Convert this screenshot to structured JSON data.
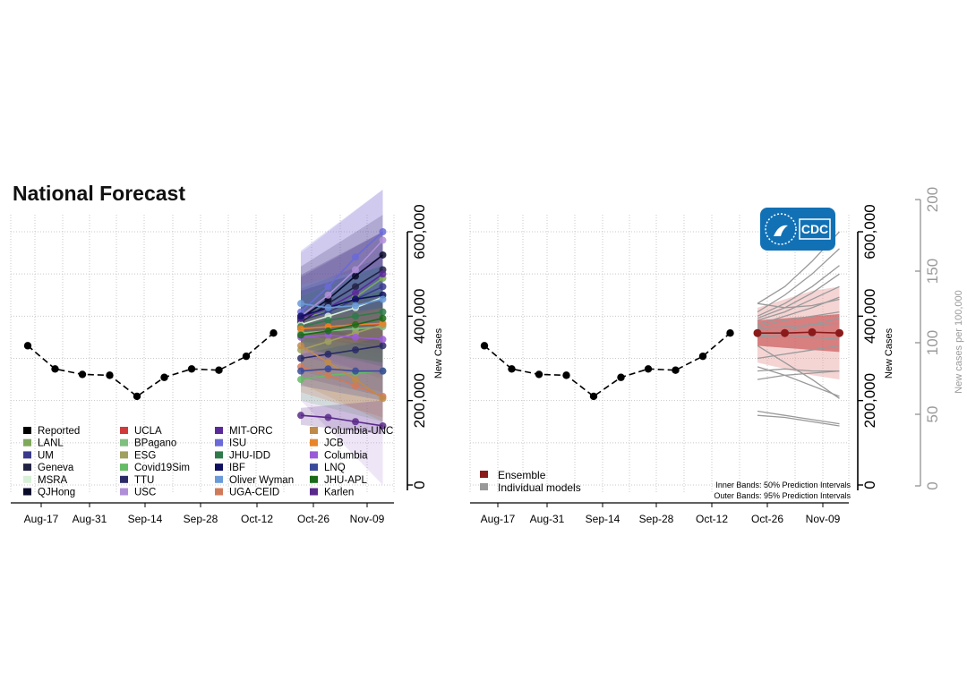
{
  "page_title": "National Forecast",
  "cdc_logo_text": "CDC",
  "colors": {
    "reported": "#000000",
    "ensemble": "#8b1a1a",
    "individual": "#999999",
    "ensemble_band_inner": "#c0393b",
    "ensemble_band_outer": "#e8a0a0"
  },
  "chart_data": [
    {
      "type": "line",
      "panel": "all-models",
      "x_ticks": [
        "Aug-17",
        "Aug-31",
        "Sep-14",
        "Sep-28",
        "Oct-12",
        "Oct-26",
        "Nov-09"
      ],
      "ylabel": "New Cases",
      "ylim": [
        0,
        600000
      ],
      "y_ticks": [
        "0",
        "200,000",
        "400,000",
        "600,000"
      ],
      "grid": true,
      "legend_placement": "bottom-left",
      "reported": {
        "name": "Reported",
        "x": [
          "Aug-15",
          "Aug-22",
          "Aug-29",
          "Sep-05",
          "Sep-12",
          "Sep-19",
          "Sep-26",
          "Oct-03",
          "Oct-10",
          "Oct-17"
        ],
        "values": [
          330000,
          275000,
          262000,
          260000,
          210000,
          255000,
          275000,
          272000,
          305000,
          360000
        ]
      },
      "forecast_x": [
        "Oct-24",
        "Oct-31",
        "Nov-07",
        "Nov-14"
      ],
      "series": [
        {
          "name": "LANL",
          "color": "#7fa85a",
          "values": [
            395000,
            410000,
            445000,
            490000
          ],
          "band": [
            250000,
            600000
          ]
        },
        {
          "name": "UM",
          "color": "#3a3a8c",
          "values": [
            390000,
            410000,
            440000,
            470000
          ],
          "band": [
            280000,
            540000
          ]
        },
        {
          "name": "Geneva",
          "color": "#222244",
          "values": [
            385000,
            430000,
            470000,
            510000
          ],
          "band": [
            300000,
            600000
          ]
        },
        {
          "name": "MSRA",
          "color": "#d8f0d8",
          "values": [
            380000,
            400000,
            420000,
            445000
          ],
          "band": [
            270000,
            520000
          ]
        },
        {
          "name": "QJHong",
          "color": "#0a0a2a",
          "values": [
            395000,
            440000,
            495000,
            545000
          ],
          "band": [
            320000,
            640000
          ]
        },
        {
          "name": "UCLA",
          "color": "#d03a3a",
          "values": [
            370000,
            375000,
            380000,
            380000
          ],
          "band": [
            310000,
            450000
          ]
        },
        {
          "name": "BPagano",
          "color": "#7fbf7f",
          "values": [
            360000,
            365000,
            370000,
            375000
          ],
          "band": [
            280000,
            460000
          ]
        },
        {
          "name": "ESG",
          "color": "#a0a060",
          "values": [
            320000,
            340000,
            360000,
            380000
          ],
          "band": [
            220000,
            480000
          ]
        },
        {
          "name": "Covid19Sim",
          "color": "#66bb66",
          "values": [
            250000,
            260000,
            265000,
            270000
          ],
          "band": [
            150000,
            390000
          ]
        },
        {
          "name": "TTU",
          "color": "#2a2a66",
          "values": [
            300000,
            310000,
            320000,
            330000
          ],
          "band": [
            210000,
            440000
          ]
        },
        {
          "name": "USC",
          "color": "#b08fd8",
          "values": [
            400000,
            450000,
            510000,
            580000
          ],
          "band": [
            0,
            700000
          ]
        },
        {
          "name": "MIT-ORC",
          "color": "#5a2a9a",
          "values": [
            395000,
            420000,
            455000,
            500000
          ],
          "band": [
            320000,
            600000
          ]
        },
        {
          "name": "ISU",
          "color": "#6a6ad8",
          "values": [
            410000,
            470000,
            540000,
            600000
          ],
          "band": [
            330000,
            700000
          ]
        },
        {
          "name": "JHU-IDD",
          "color": "#2e7a4a",
          "values": [
            375000,
            390000,
            400000,
            410000
          ],
          "band": [
            280000,
            520000
          ]
        },
        {
          "name": "IBF",
          "color": "#101060",
          "values": [
            400000,
            420000,
            440000,
            450000
          ],
          "band": [
            330000,
            520000
          ]
        },
        {
          "name": "Oliver Wyman",
          "color": "#6a9ad8",
          "values": [
            430000,
            420000,
            425000,
            440000
          ],
          "band": [
            340000,
            520000
          ]
        },
        {
          "name": "UGA-CEID",
          "color": "#d07a5a",
          "values": [
            280000,
            260000,
            235000,
            210000
          ],
          "band": [
            160000,
            380000
          ]
        },
        {
          "name": "Columbia-UNC",
          "color": "#c08a4a",
          "values": [
            330000,
            290000,
            250000,
            205000
          ],
          "band": [
            150000,
            420000
          ]
        },
        {
          "name": "JCB",
          "color": "#e8852a",
          "values": [
            370000,
            375000,
            380000,
            383000
          ],
          "band": [
            330000,
            420000
          ]
        },
        {
          "name": "Columbia",
          "color": "#9a5ad8",
          "values": [
            350000,
            355000,
            350000,
            345000
          ],
          "band": [
            260000,
            450000
          ]
        },
        {
          "name": "LNQ",
          "color": "#3a4a9a",
          "values": [
            270000,
            275000,
            270000,
            270000
          ],
          "band": [
            200000,
            350000
          ]
        },
        {
          "name": "JHU-APL",
          "color": "#1a6a1a",
          "values": [
            355000,
            365000,
            380000,
            395000
          ],
          "band": [
            290000,
            460000
          ]
        },
        {
          "name": "Karlen",
          "color": "#5a2a8a",
          "values": [
            165000,
            160000,
            150000,
            140000
          ],
          "band": [
            120000,
            200000
          ]
        }
      ]
    },
    {
      "type": "line",
      "panel": "ensemble",
      "x_ticks": [
        "Aug-17",
        "Aug-31",
        "Sep-14",
        "Sep-28",
        "Oct-12",
        "Oct-26",
        "Nov-09"
      ],
      "ylabel": "New Cases",
      "ylim": [
        0,
        600000
      ],
      "y_ticks": [
        "0",
        "200,000",
        "400,000",
        "600,000"
      ],
      "y2label": "New cases per 100,000",
      "y2lim": [
        0,
        200
      ],
      "y2_ticks": [
        "0",
        "50",
        "100",
        "150",
        "200"
      ],
      "grid": true,
      "legend_placement": "bottom-left",
      "legend": [
        "Ensemble",
        "Individual models"
      ],
      "band_notes": [
        "Inner Bands: 50% Prediction Intervals",
        "Outer Bands: 95% Prediction Intervals"
      ],
      "reported": {
        "name": "Reported",
        "x": [
          "Aug-15",
          "Aug-22",
          "Aug-29",
          "Sep-05",
          "Sep-12",
          "Sep-19",
          "Sep-26",
          "Oct-03",
          "Oct-10",
          "Oct-17"
        ],
        "values": [
          330000,
          275000,
          262000,
          260000,
          210000,
          255000,
          275000,
          272000,
          305000,
          360000
        ]
      },
      "forecast_x": [
        "Oct-24",
        "Oct-31",
        "Nov-07",
        "Nov-14"
      ],
      "ensemble": {
        "name": "Ensemble",
        "values": [
          360000,
          360000,
          362000,
          360000
        ],
        "pi50": [
          [
            330000,
            390000
          ],
          [
            325000,
            395000
          ],
          [
            320000,
            400000
          ],
          [
            315000,
            405000
          ]
        ],
        "pi95": [
          [
            290000,
            420000
          ],
          [
            275000,
            440000
          ],
          [
            260000,
            460000
          ],
          [
            250000,
            470000
          ]
        ]
      },
      "individual": [
        [
          430000,
          470000,
          530000,
          600000
        ],
        [
          410000,
          450000,
          500000,
          560000
        ],
        [
          400000,
          430000,
          470000,
          520000
        ],
        [
          395000,
          420000,
          455000,
          500000
        ],
        [
          430000,
          420000,
          425000,
          440000
        ],
        [
          390000,
          410000,
          440000,
          470000
        ],
        [
          380000,
          400000,
          420000,
          445000
        ],
        [
          375000,
          390000,
          400000,
          410000
        ],
        [
          370000,
          375000,
          380000,
          383000
        ],
        [
          355000,
          365000,
          380000,
          395000
        ],
        [
          350000,
          355000,
          350000,
          345000
        ],
        [
          330000,
          290000,
          250000,
          205000
        ],
        [
          280000,
          260000,
          235000,
          210000
        ],
        [
          300000,
          310000,
          320000,
          330000
        ],
        [
          270000,
          275000,
          270000,
          270000
        ],
        [
          250000,
          260000,
          265000,
          270000
        ],
        [
          175000,
          165000,
          155000,
          145000
        ],
        [
          165000,
          160000,
          150000,
          140000
        ]
      ]
    }
  ]
}
